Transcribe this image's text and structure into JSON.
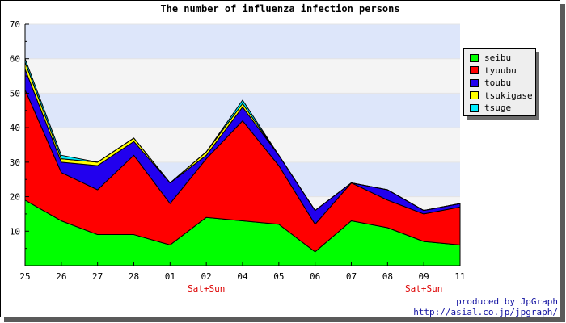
{
  "chart_data": {
    "type": "area",
    "stacked": true,
    "title": "The number of influenza infection persons",
    "categories": [
      "25",
      "26",
      "27",
      "28",
      "01",
      "02",
      "04",
      "05",
      "06",
      "07",
      "08",
      "09",
      "11"
    ],
    "category_notes": [
      "",
      "",
      "",
      "",
      "",
      "Sat+Sun",
      "",
      "",
      "",
      "",
      "",
      "Sat+Sun",
      ""
    ],
    "ylim": [
      0,
      70
    ],
    "yticks": [
      10,
      20,
      30,
      40,
      50,
      60,
      70
    ],
    "grid": "horizontal bands",
    "legend_position": "right",
    "series": [
      {
        "name": "seibu",
        "color": "#00ff00",
        "values": [
          19,
          13,
          9,
          9,
          6,
          14,
          13,
          12,
          4,
          13,
          11,
          7,
          6
        ]
      },
      {
        "name": "tyuubu",
        "color": "#ff0000",
        "values": [
          32,
          14,
          13,
          23,
          12,
          17,
          29,
          17,
          8,
          11,
          8,
          8,
          11
        ]
      },
      {
        "name": "toubu",
        "color": "#2200ee",
        "values": [
          6,
          3,
          7,
          4,
          6,
          1,
          4,
          3,
          4,
          0,
          3,
          1,
          1
        ]
      },
      {
        "name": "tsukigase",
        "color": "#ffff00",
        "values": [
          2,
          1,
          1,
          1,
          0,
          1,
          1,
          0,
          0,
          0,
          0,
          0,
          0
        ]
      },
      {
        "name": "tsuge",
        "color": "#00eeff",
        "values": [
          1,
          1,
          0,
          0,
          0,
          0,
          1,
          0,
          0,
          0,
          0,
          0,
          0
        ]
      }
    ]
  },
  "credit": {
    "line1": "produced by JpGraph",
    "line2": "http://asial.co.jp/jpgraph/"
  }
}
